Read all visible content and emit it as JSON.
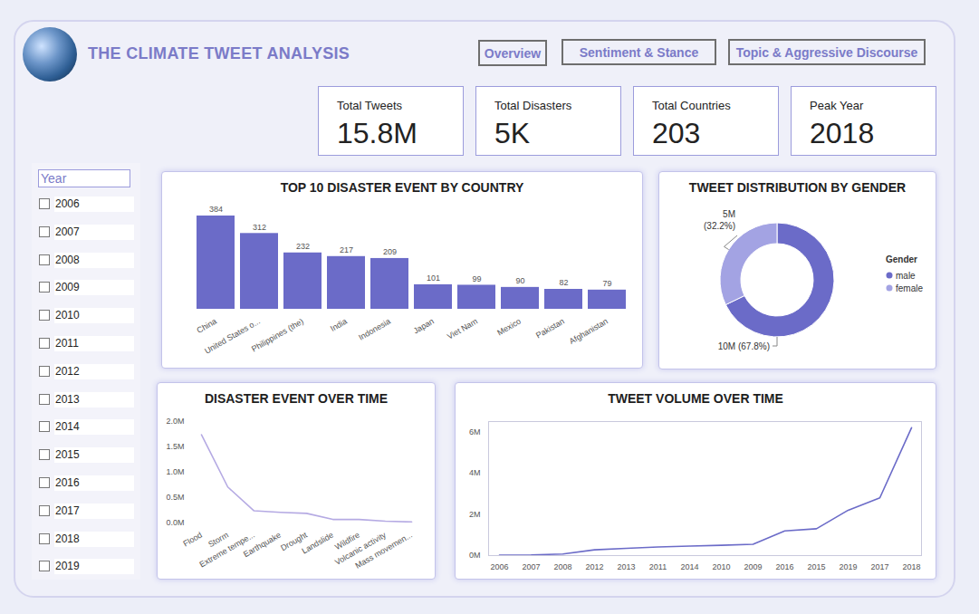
{
  "header": {
    "title": "THE CLIMATE TWEET ANALYSIS",
    "nav": [
      "Overview",
      "Sentiment & Stance",
      "Topic & Aggressive Discourse"
    ]
  },
  "kpis": [
    {
      "label": "Total Tweets",
      "value": "15.8M"
    },
    {
      "label": "Total Disasters",
      "value": "5K"
    },
    {
      "label": "Total Countries",
      "value": "203"
    },
    {
      "label": "Peak Year",
      "value": "2018"
    }
  ],
  "slicer": {
    "title": "Year",
    "items": [
      "2006",
      "2007",
      "2008",
      "2009",
      "2010",
      "2011",
      "2012",
      "2013",
      "2014",
      "2015",
      "2016",
      "2017",
      "2018",
      "2019"
    ]
  },
  "chart_data": [
    {
      "type": "bar",
      "title": "TOP 10 DISASTER EVENT BY COUNTRY",
      "categories": [
        "China",
        "United States o...",
        "Philippines (the)",
        "India",
        "Indonesia",
        "Japan",
        "Viet Nam",
        "Mexico",
        "Pakistan",
        "Afghanistan"
      ],
      "values": [
        384,
        312,
        232,
        217,
        209,
        101,
        99,
        90,
        82,
        79
      ],
      "color": "#6b6bc8",
      "data_labels": true,
      "tick_labels": "x"
    },
    {
      "type": "donut",
      "title": "TWEET DISTRIBUTION BY GENDER",
      "categories": [
        "male",
        "female"
      ],
      "values": [
        67.8,
        32.2
      ],
      "value_labels": [
        "10M (67.8%)",
        "5M (32.2%)"
      ],
      "colors": [
        "#6b6bc8",
        "#a3a3e3"
      ],
      "data_labels": true,
      "legend": "right",
      "legend_title": "Gender"
    },
    {
      "type": "line",
      "title": "DISASTER EVENT OVER TIME",
      "categories": [
        "Flood",
        "Storm",
        "Extreme tempe...",
        "Earthquake",
        "Drought",
        "Landslide",
        "Wildfire",
        "Volcanic activity",
        "Mass movemen..."
      ],
      "values": [
        1740000,
        710000,
        240000,
        210000,
        190000,
        70000,
        70000,
        35000,
        20000
      ],
      "color": "#b5aae3",
      "ylim": [
        0,
        2000000
      ],
      "yticks": [
        {
          "value": 0,
          "label": "0.0M"
        },
        {
          "value": 500000,
          "label": "0.5M"
        },
        {
          "value": 1000000,
          "label": "1.0M"
        },
        {
          "value": 1500000,
          "label": "1.5M"
        },
        {
          "value": 2000000,
          "label": "2.0M"
        }
      ]
    },
    {
      "type": "line",
      "title": "TWEET VOLUME OVER TIME",
      "categories": [
        "2006",
        "2007",
        "2008",
        "2012",
        "2013",
        "2011",
        "2014",
        "2010",
        "2009",
        "2016",
        "2015",
        "2019",
        "2017",
        "2018"
      ],
      "values": [
        20000,
        30000,
        80000,
        280000,
        350000,
        420000,
        460000,
        500000,
        550000,
        1200000,
        1300000,
        2200000,
        2800000,
        6200000
      ],
      "color": "#6b6bc8",
      "ylim": [
        0,
        6500000
      ],
      "yticks": [
        {
          "value": 0,
          "label": "0M"
        },
        {
          "value": 2000000,
          "label": "2M"
        },
        {
          "value": 4000000,
          "label": "4M"
        },
        {
          "value": 6000000,
          "label": "6M"
        }
      ]
    }
  ]
}
